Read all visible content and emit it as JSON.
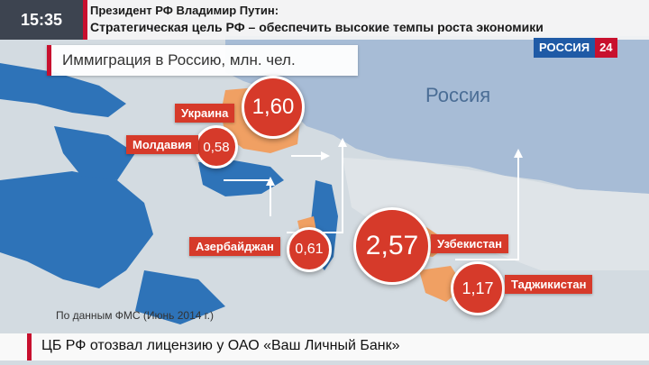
{
  "clock": "15:35",
  "header": {
    "line1": "Президент РФ Владимир Путин:",
    "line2": "Стратегическая цель РФ – обеспечить высокие темпы роста экономики"
  },
  "channel": {
    "name": "РОССИЯ",
    "number": "24"
  },
  "infographic": {
    "title": "Иммиграция в Россию, млн. чел.",
    "map_label": "Россия",
    "source": "По данным ФМС (Июнь 2014 г.)",
    "countries": [
      {
        "name": "Украина",
        "value": "1,60"
      },
      {
        "name": "Молдавия",
        "value": "0,58"
      },
      {
        "name": "Азербайджан",
        "value": "0,61"
      },
      {
        "name": "Узбекистан",
        "value": "2,57"
      },
      {
        "name": "Таджикистан",
        "value": "1,17"
      }
    ]
  },
  "ticker": {
    "text": "ЦБ РФ отозвал лицензию у ОАО «Ваш Личный Банк»"
  },
  "colors": {
    "accent_red": "#d63a2a",
    "brand_blue": "#1f5aa6",
    "sea_blue": "#2e73b8"
  }
}
